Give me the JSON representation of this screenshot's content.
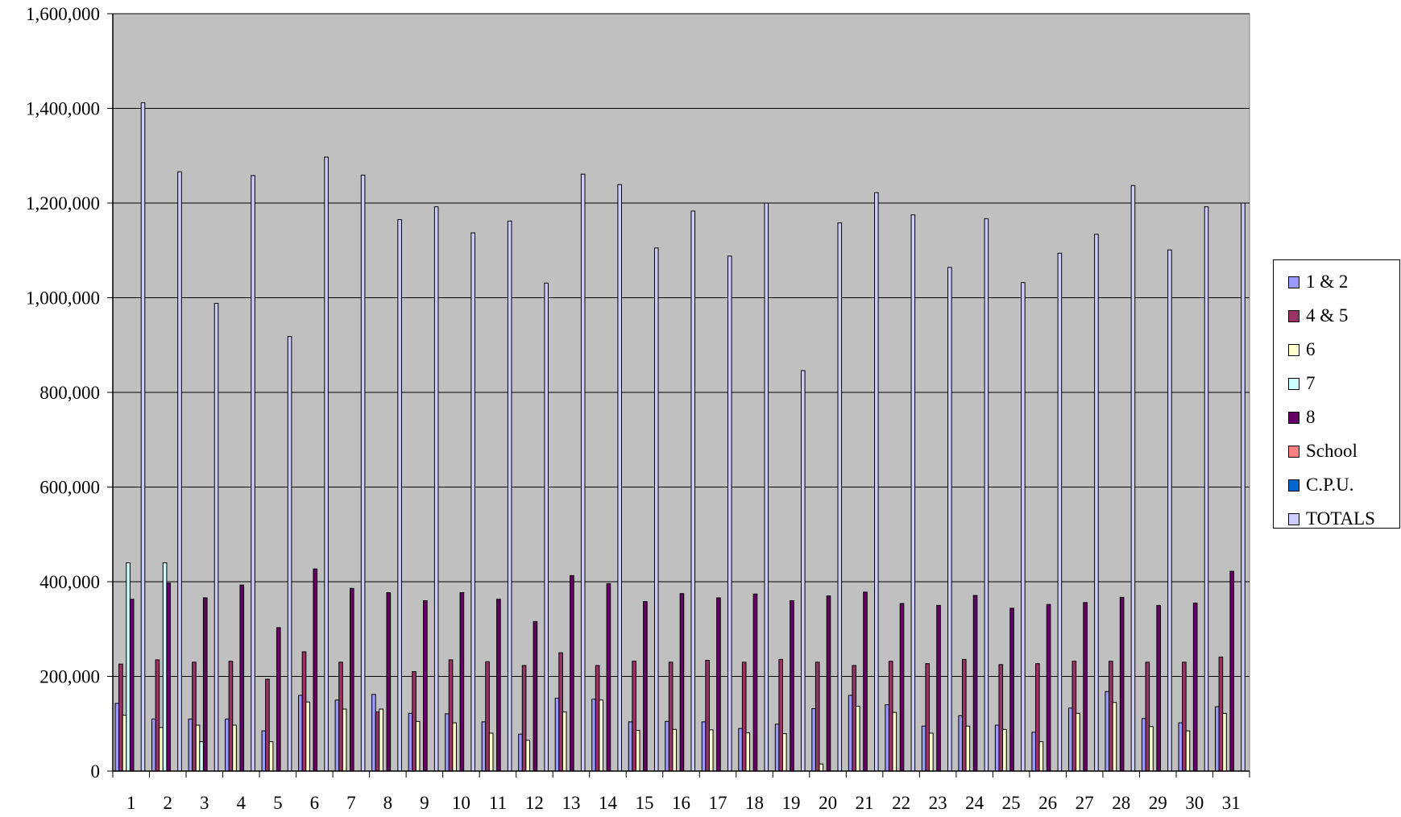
{
  "chart_data": {
    "type": "bar",
    "title": "",
    "xlabel": "",
    "ylabel": "",
    "ylim": [
      0,
      1600000
    ],
    "yticks": [
      "0",
      "200,000",
      "400,000",
      "600,000",
      "800,000",
      "1,000,000",
      "1,200,000",
      "1,400,000",
      "1,600,000"
    ],
    "ytick_values": [
      0,
      200000,
      400000,
      600000,
      800000,
      1000000,
      1200000,
      1400000,
      1600000
    ],
    "grid": true,
    "legend_position": "right",
    "plot_background": "#c0c0c0",
    "categories": [
      "1",
      "2",
      "3",
      "4",
      "5",
      "6",
      "7",
      "8",
      "9",
      "10",
      "11",
      "12",
      "13",
      "14",
      "15",
      "16",
      "17",
      "18",
      "19",
      "20",
      "21",
      "22",
      "23",
      "24",
      "25",
      "26",
      "27",
      "28",
      "29",
      "30",
      "31"
    ],
    "series": [
      {
        "name": "1 & 2",
        "color": "#9999ff",
        "values": [
          143000,
          110000,
          110000,
          110000,
          85000,
          160000,
          150000,
          162000,
          122000,
          121000,
          104000,
          78000,
          154000,
          152000,
          104000,
          105000,
          104000,
          90000,
          99000,
          132000,
          160000,
          140000,
          95000,
          117000,
          97000,
          82000,
          133000,
          168000,
          111000,
          102000,
          136000
        ]
      },
      {
        "name": "4 & 5",
        "color": "#993366",
        "values": [
          226000,
          235000,
          230000,
          232000,
          194000,
          252000,
          230000,
          125000,
          210000,
          235000,
          231000,
          223000,
          250000,
          223000,
          232000,
          230000,
          234000,
          230000,
          236000,
          230000,
          223000,
          232000,
          227000,
          236000,
          225000,
          227000,
          232000,
          232000,
          230000,
          230000,
          241000
        ]
      },
      {
        "name": "6",
        "color": "#ffffcc",
        "values": [
          118000,
          92000,
          97000,
          97000,
          62000,
          146000,
          131000,
          131000,
          105000,
          102000,
          80000,
          65000,
          125000,
          150000,
          86000,
          88000,
          87000,
          81000,
          79000,
          15000,
          137000,
          124000,
          80000,
          95000,
          88000,
          62000,
          122000,
          145000,
          94000,
          85000,
          122000
        ]
      },
      {
        "name": "7",
        "color": "#ccffff",
        "values": [
          440000,
          440000,
          62000,
          0,
          0,
          0,
          0,
          0,
          0,
          0,
          0,
          0,
          0,
          0,
          0,
          0,
          0,
          0,
          0,
          0,
          0,
          0,
          0,
          0,
          0,
          0,
          0,
          0,
          0,
          0,
          0
        ]
      },
      {
        "name": "8",
        "color": "#660066",
        "values": [
          363000,
          397000,
          366000,
          393000,
          303000,
          427000,
          386000,
          377000,
          360000,
          377000,
          363000,
          316000,
          413000,
          396000,
          358000,
          375000,
          366000,
          374000,
          360000,
          370000,
          378000,
          354000,
          350000,
          371000,
          344000,
          352000,
          356000,
          367000,
          350000,
          355000,
          422000
        ]
      },
      {
        "name": "School",
        "color": "#ff8080",
        "values": [
          0,
          0,
          0,
          0,
          0,
          0,
          0,
          0,
          0,
          0,
          0,
          0,
          0,
          0,
          0,
          0,
          0,
          0,
          0,
          0,
          0,
          0,
          0,
          0,
          0,
          0,
          0,
          0,
          0,
          0,
          0
        ]
      },
      {
        "name": "C.P.U.",
        "color": "#0066cc",
        "values": [
          0,
          0,
          0,
          0,
          0,
          0,
          0,
          0,
          0,
          0,
          0,
          0,
          0,
          0,
          0,
          0,
          0,
          0,
          0,
          0,
          0,
          0,
          0,
          0,
          0,
          0,
          0,
          0,
          0,
          0,
          0
        ]
      },
      {
        "name": "TOTALS",
        "color": "#ccccff",
        "values": [
          1412000,
          1266000,
          988000,
          1258000,
          918000,
          1297000,
          1259000,
          1165000,
          1192000,
          1137000,
          1162000,
          1031000,
          1261000,
          1239000,
          1105000,
          1183000,
          1088000,
          1200000,
          846000,
          1158000,
          1222000,
          1175000,
          1064000,
          1167000,
          1032000,
          1094000,
          1134000,
          1237000,
          1101000,
          1192000,
          1200000
        ]
      }
    ]
  }
}
